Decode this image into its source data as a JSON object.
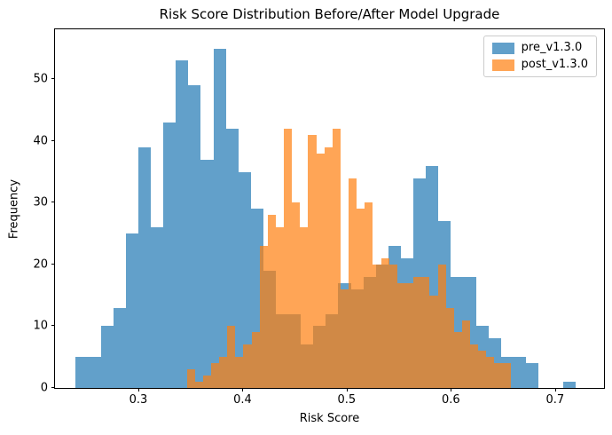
{
  "figure": {
    "title": "Risk Score Distribution Before/After Model Upgrade",
    "xlabel": "Risk Score",
    "ylabel": "Frequency"
  },
  "legend": {
    "position": "upper-right",
    "items": [
      {
        "label": "pre_v1.3.0",
        "color": "rgba(31,119,180,0.7)"
      },
      {
        "label": "post_v1.3.0",
        "color": "rgba(255,127,14,0.7)"
      }
    ]
  },
  "chart_data": {
    "type": "bar",
    "subtype": "overlapping-histograms",
    "title": "Risk Score Distribution Before/After Model Upgrade",
    "xlabel": "Risk Score",
    "ylabel": "Frequency",
    "xlim": [
      0.22,
      0.747
    ],
    "ylim": [
      0,
      58.1
    ],
    "x_ticks": [
      0.3,
      0.4,
      0.5,
      0.6,
      0.7
    ],
    "x_tick_labels": [
      "0.3",
      "0.4",
      "0.5",
      "0.6",
      "0.7"
    ],
    "y_ticks": [
      0,
      10,
      20,
      30,
      40,
      50
    ],
    "y_tick_labels": [
      "0",
      "10",
      "20",
      "30",
      "40",
      "50"
    ],
    "grid": false,
    "legend_position": "upper right",
    "series": [
      {
        "name": "pre_v1.3.0",
        "color": "rgba(31,119,180,0.7)",
        "bin_start": 0.24,
        "bin_width": 0.012,
        "counts": [
          5,
          5,
          10,
          13,
          25,
          39,
          26,
          43,
          53,
          49,
          37,
          55,
          42,
          35,
          29,
          19,
          12,
          12,
          7,
          10,
          12,
          17,
          16,
          18,
          20,
          23,
          21,
          34,
          36,
          27,
          18,
          18,
          10,
          8,
          5,
          5,
          4,
          0,
          0,
          1
        ]
      },
      {
        "name": "post_v1.3.0",
        "color": "rgba(255,127,14,0.7)",
        "bin_start": 0.3465,
        "bin_width": 0.00777,
        "counts": [
          3,
          1,
          2,
          4,
          5,
          10,
          5,
          7,
          9,
          23,
          28,
          26,
          42,
          30,
          26,
          41,
          38,
          39,
          42,
          16,
          34,
          29,
          30,
          20,
          21,
          20,
          17,
          17,
          18,
          18,
          15,
          20,
          13,
          9,
          11,
          7,
          6,
          5,
          4,
          4
        ]
      }
    ]
  }
}
